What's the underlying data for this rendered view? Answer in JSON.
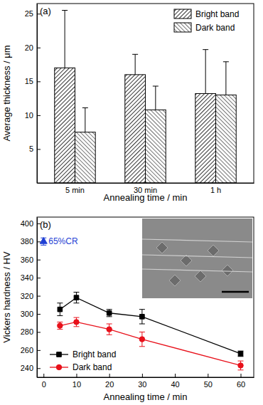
{
  "chart_data": [
    {
      "type": "bar",
      "title": "(a)",
      "x_label": "Annealing time / min",
      "y_label": "Average thickness / μm",
      "categories": [
        "5 min",
        "30 min",
        "1 h"
      ],
      "series": [
        {
          "name": "Bright band",
          "color": "#000000",
          "values": [
            17.0,
            16.0,
            13.2
          ],
          "errors": [
            8.5,
            3.0,
            6.5
          ]
        },
        {
          "name": "Dark band",
          "color": "#000000",
          "values": [
            7.5,
            10.8,
            13.0
          ],
          "errors": [
            3.6,
            3.5,
            4.9
          ]
        }
      ],
      "ylim": [
        0,
        26.5
      ],
      "yticks": [
        5,
        10,
        15,
        20,
        25
      ],
      "legend": "top-right"
    },
    {
      "type": "line",
      "title": "(b)",
      "x_label": "Annealing time / min",
      "y_label": "Vickers hardness / HV",
      "series": [
        {
          "name": "Bright band",
          "color": "#000000",
          "marker": "square",
          "x": [
            5,
            10,
            20,
            30,
            60
          ],
          "values": [
            305,
            318,
            301,
            297,
            256
          ],
          "errors": [
            7,
            6,
            4,
            8,
            3
          ]
        },
        {
          "name": "Dark band",
          "color": "#e8101a",
          "marker": "circle",
          "x": [
            5,
            10,
            20,
            30,
            60
          ],
          "values": [
            287,
            291,
            283,
            272,
            243
          ],
          "errors": [
            4,
            5,
            6,
            8,
            5
          ]
        },
        {
          "name": "65%CR",
          "type": "scatter",
          "color": "#1f3fd4",
          "marker": "triangle",
          "x": [
            0
          ],
          "values": [
            380
          ],
          "errors": [
            4
          ]
        }
      ],
      "xlim": [
        -2,
        64
      ],
      "xticks": [
        0,
        10,
        20,
        30,
        40,
        50,
        60
      ],
      "ylim": [
        230,
        407
      ],
      "yticks": [
        240,
        260,
        280,
        300,
        320,
        340,
        360,
        380,
        400
      ],
      "legend": "bottom-left"
    }
  ]
}
